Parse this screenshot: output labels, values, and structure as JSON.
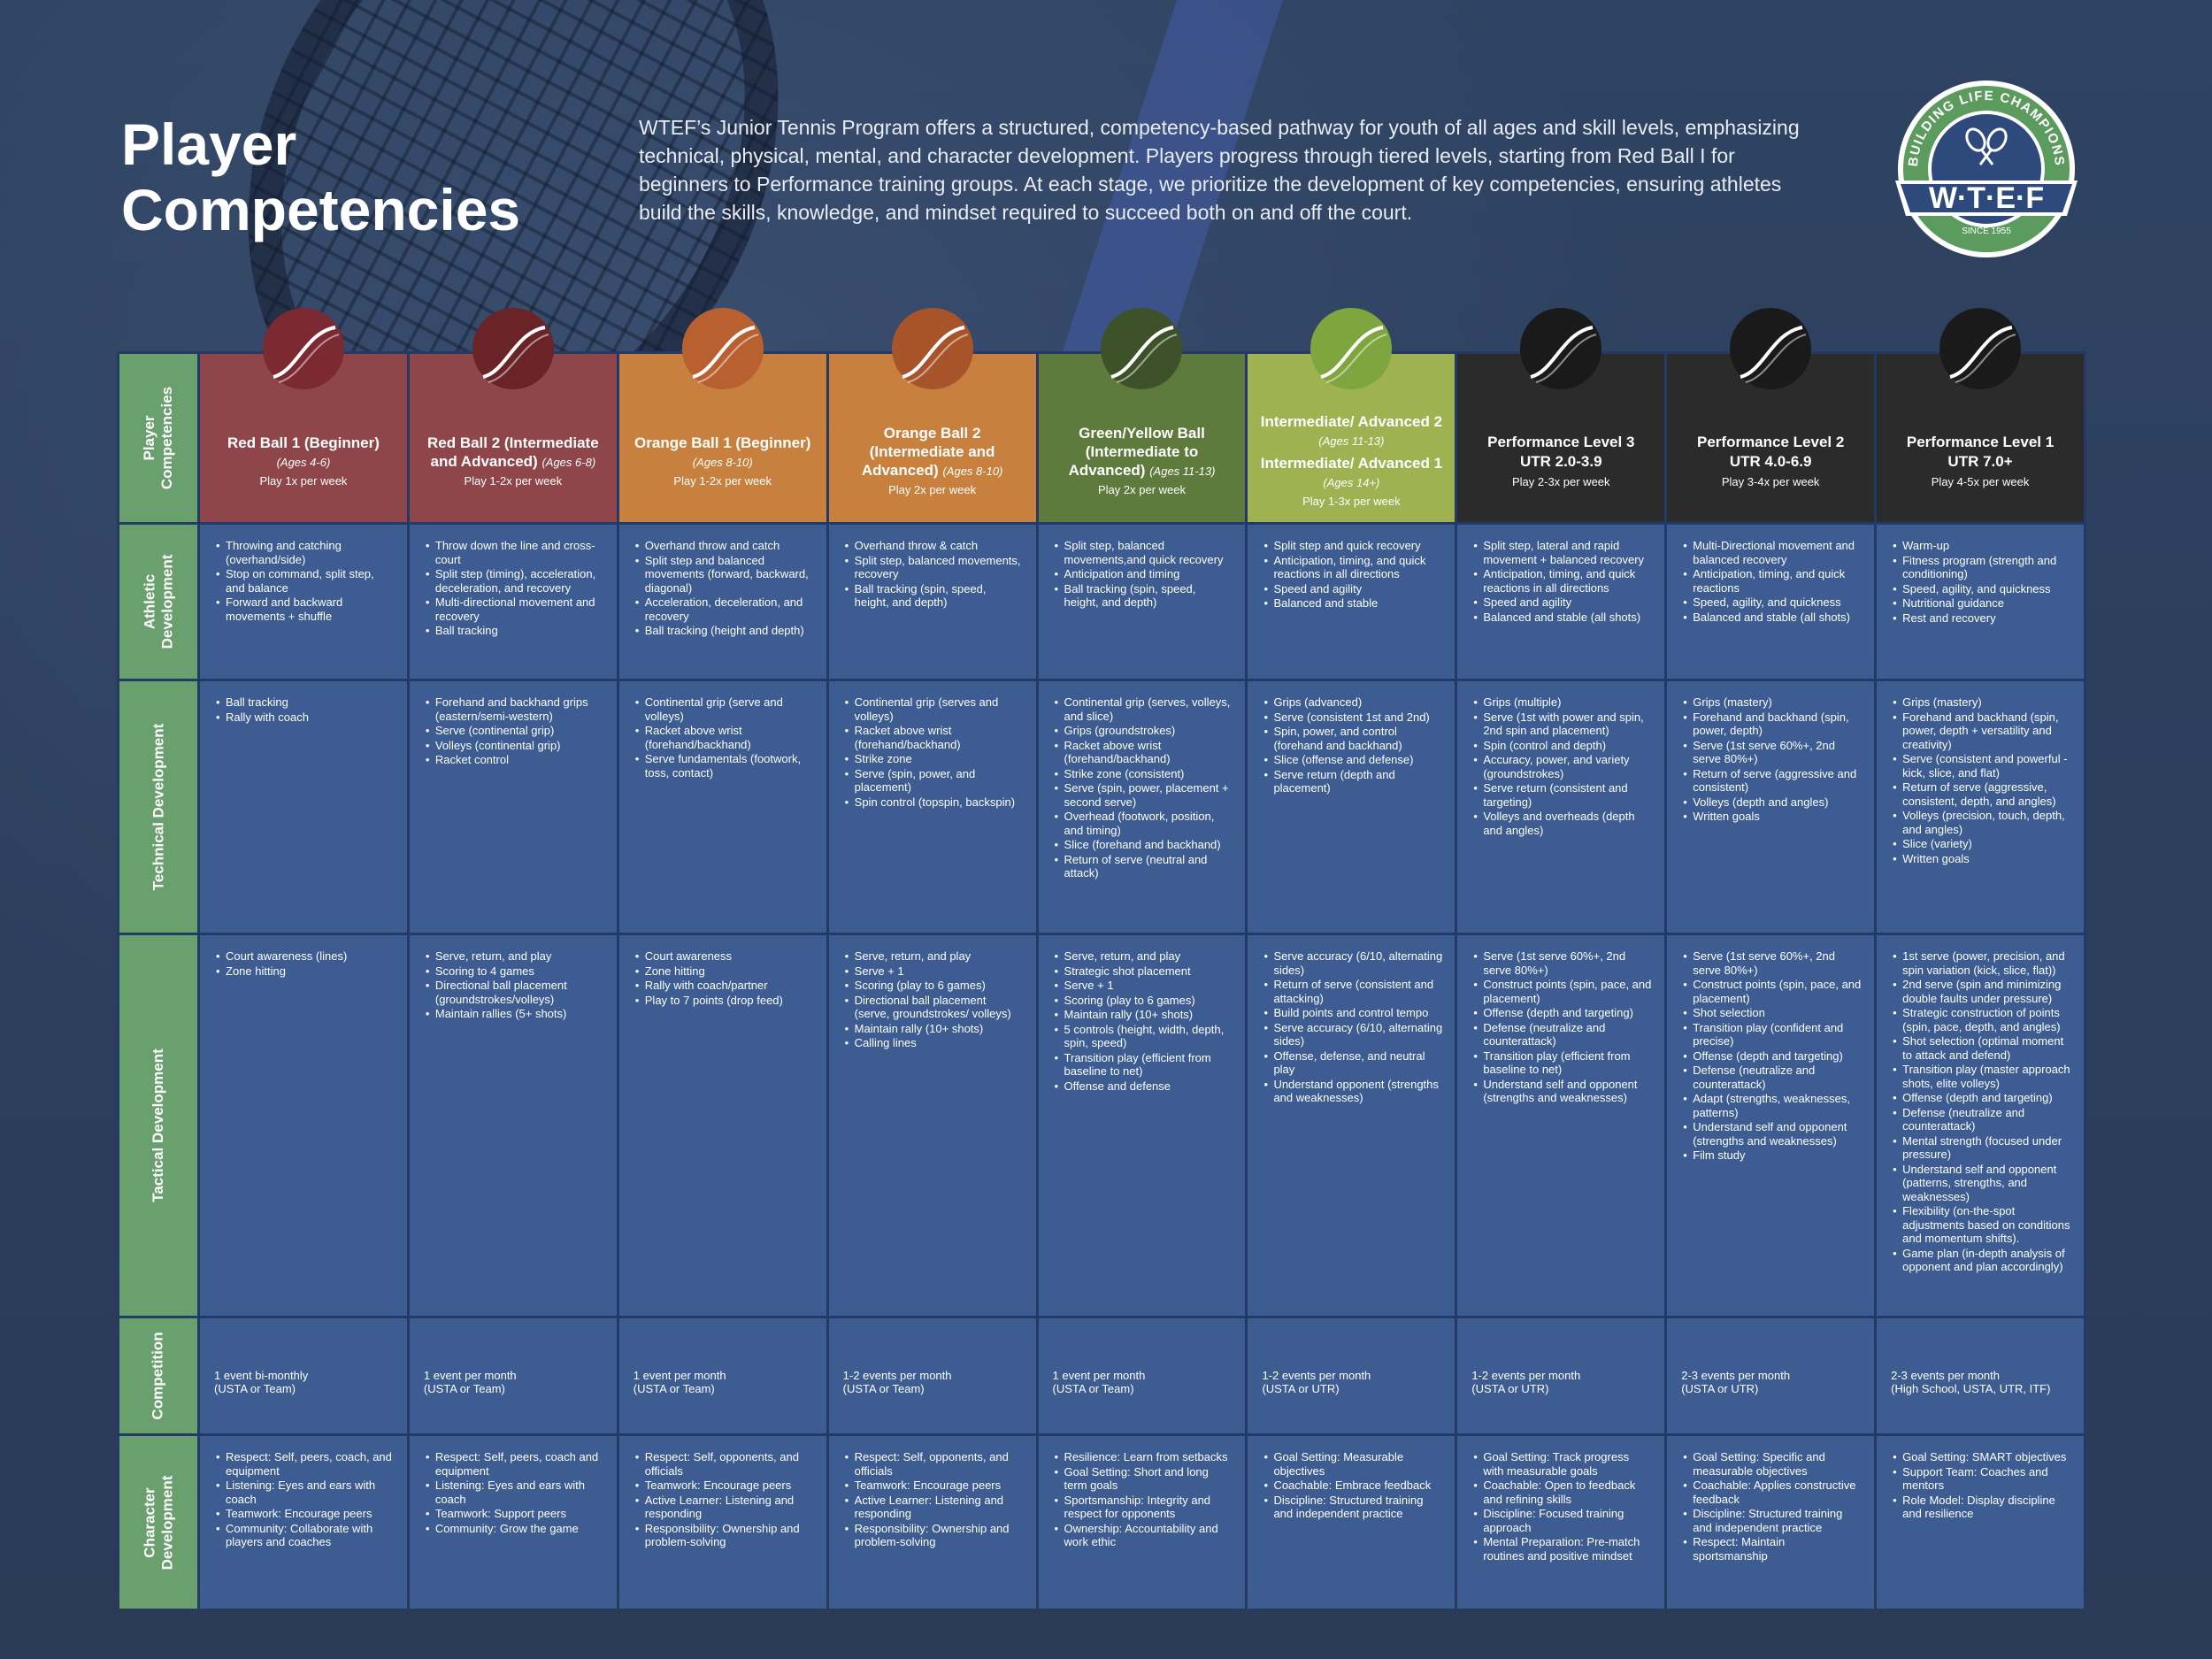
{
  "page": {
    "title_line1": "Player",
    "title_line2": "Competencies",
    "intro": "WTEF’s Junior Tennis Program offers a structured, competency-based pathway for youth of all ages and skill levels, emphasizing technical, physical, mental, and character development. Players progress through tiered levels, starting from Red Ball I for beginners to Performance training groups. At each stage, we prioritize the development of key competencies, ensuring athletes build the skills, knowledge, and mindset required to succeed both on and off the court."
  },
  "logo": {
    "arc_text": "BUILDING LIFE CHAMPIONS",
    "name": "W·T·E·F",
    "since": "SINCE 1955",
    "colors": {
      "ring": "#5b9b5e",
      "inner": "#2e4a7c",
      "banner": "#2e4a7c"
    }
  },
  "row_labels": {
    "competencies": "Player Competencies",
    "athletic": "Athletic Development",
    "technical": "Technical Development",
    "tactical": "Tactical Development",
    "competition": "Competition",
    "character": "Character Development"
  },
  "levels": [
    {
      "name": "Red Ball 1 (Beginner)",
      "age": "(Ages 4-6)",
      "play": "Play 1x per week",
      "ball_color": "#7b2a31",
      "athletic": [
        "Throwing and catching (overhand/side)",
        "Stop on command, split step, and balance",
        "Forward and backward movements + shuffle"
      ],
      "technical": [
        "Ball tracking",
        "Rally with coach"
      ],
      "tactical": [
        "Court awareness (lines)",
        "Zone hitting"
      ],
      "competition": [
        "1 event bi-monthly",
        "(USTA or Team)"
      ],
      "character": [
        "Respect: Self, peers, coach, and equipment",
        "Listening: Eyes and ears with coach",
        "Teamwork: Encourage peers",
        "Community: Collaborate with players and coaches"
      ]
    },
    {
      "name": "Red Ball 2 (Intermediate and Advanced)",
      "age": "(Ages 6-8)",
      "play": "Play 1-2x per week",
      "ball_color": "#6a2428",
      "athletic": [
        "Throw down the line and cross-court",
        "Split step (timing), acceleration, deceleration, and recovery",
        "Multi-directional movement and recovery",
        "Ball tracking"
      ],
      "technical": [
        "Forehand and backhand grips (eastern/semi-western)",
        "Serve (continental grip)",
        "Volleys (continental grip)",
        "Racket control"
      ],
      "tactical": [
        "Serve, return, and play",
        "Scoring to 4 games",
        "Directional ball placement (groundstrokes/volleys)",
        "Maintain rallies (5+ shots)"
      ],
      "competition": [
        "1 event per month",
        "(USTA or Team)"
      ],
      "character": [
        "Respect: Self, peers, coach and equipment",
        "Listening: Eyes and ears with coach",
        "Teamwork: Support peers",
        "Community: Grow the game"
      ]
    },
    {
      "name": "Orange Ball 1 (Beginner)",
      "age": "(Ages 8-10)",
      "play": "Play 1-2x per week",
      "ball_color": "#b8602f",
      "athletic": [
        "Overhand throw and catch",
        "Split step and balanced movements (forward, backward, diagonal)",
        "Acceleration, deceleration, and recovery",
        "Ball tracking (height and depth)"
      ],
      "technical": [
        "Continental grip (serve and volleys)",
        "Racket above wrist (forehand/backhand)",
        "Serve fundamentals (footwork, toss, contact)"
      ],
      "tactical": [
        "Court awareness",
        "Zone hitting",
        "Rally with coach/partner",
        "Play to 7 points (drop feed)"
      ],
      "competition": [
        "1 event per month",
        "(USTA or Team)"
      ],
      "character": [
        "Respect: Self, opponents, and officials",
        "Teamwork: Encourage peers",
        "Active Learner: Listening and responding",
        "Responsibility: Ownership and problem-solving"
      ]
    },
    {
      "name": "Orange Ball 2 (Intermediate and Advanced)",
      "age": "(Ages 8-10)",
      "play": "Play 2x per week",
      "ball_color": "#a8542a",
      "athletic": [
        "Overhand throw & catch",
        "Split step, balanced movements, recovery",
        "Ball tracking (spin, speed, height, and depth)"
      ],
      "technical": [
        "Continental grip (serves and volleys)",
        "Racket above wrist (forehand/backhand)",
        "Strike zone",
        "Serve (spin, power, and placement)",
        "Spin control (topspin, backspin)"
      ],
      "tactical": [
        "Serve, return, and play",
        "Serve + 1",
        "Scoring (play to 6 games)",
        "Directional ball placement (serve, groundstrokes/ volleys)",
        "Maintain rally (10+ shots)",
        "Calling lines"
      ],
      "competition": [
        "1-2 events per month",
        "(USTA or Team)"
      ],
      "character": [
        "Respect: Self, opponents, and officials",
        "Teamwork: Encourage peers",
        "Active Learner: Listening and responding",
        "Responsibility: Ownership and problem-solving"
      ]
    },
    {
      "name": "Green/Yellow Ball (Intermediate to Advanced)",
      "age": "(Ages 11-13)",
      "play": "Play 2x per week",
      "ball_color": "#3e5229",
      "athletic": [
        "Split step, balanced movements,and quick recovery",
        "Anticipation and timing",
        "Ball tracking (spin, speed, height, and depth)"
      ],
      "technical": [
        "Continental grip (serves, volleys, and slice)",
        "Grips (groundstrokes)",
        "Racket above wrist (forehand/backhand)",
        "Strike zone (consistent)",
        "Serve (spin, power, placement + second serve)",
        "Overhead (footwork, position, and timing)",
        "Slice (forehand and backhand)",
        "Return of serve (neutral and attack)"
      ],
      "tactical": [
        "Serve, return, and play",
        "Strategic shot placement",
        "Serve + 1",
        "Scoring (play to 6 games)",
        "Maintain rally (10+ shots)",
        "5 controls (height, width, depth, spin, speed)",
        "Transition play (efficient from baseline to net)",
        "Offense and defense"
      ],
      "competition": [
        "1 event per month",
        "(USTA or Team)"
      ],
      "character": [
        "Resilience: Learn from setbacks",
        "Goal Setting: Short and long term goals",
        "Sportsmanship: Integrity and respect for opponents",
        "Ownership: Accountability and work ethic"
      ]
    },
    {
      "name": "Intermediate/ Advanced 2",
      "age": "(Ages 11-13)",
      "name2": "Intermediate/ Advanced 1",
      "age2": "(Ages 14+)",
      "play": "Play 1-3x per week",
      "ball_color": "#7ea53e",
      "athletic": [
        "Split step and quick recovery",
        "Anticipation, timing, and quick reactions in all directions",
        "Speed and agility",
        "Balanced and stable"
      ],
      "technical": [
        "Grips (advanced)",
        "Serve (consistent 1st and 2nd)",
        "Spin, power, and control (forehand and backhand)",
        "Slice (offense and defense)",
        "Serve return (depth and placement)"
      ],
      "tactical": [
        "Serve accuracy (6/10, alternating sides)",
        "Return of serve (consistent and attacking)",
        "Build points and control tempo",
        "Serve accuracy (6/10, alternating sides)",
        "Offense, defense, and neutral play",
        "Understand opponent (strengths and weaknesses)"
      ],
      "competition": [
        "1-2 events per month",
        "(USTA or UTR)"
      ],
      "character": [
        "Goal Setting: Measurable objectives",
        "Coachable: Embrace feedback",
        "Discipline: Structured training and independent practice"
      ]
    },
    {
      "name": "Performance Level 3",
      "utr": "UTR 2.0-3.9",
      "play": "Play 2-3x per week",
      "ball_color": "#1a1a1a",
      "athletic": [
        "Split step, lateral and rapid movement + balanced recovery",
        "Anticipation, timing, and quick reactions in all directions",
        "Speed and agility",
        "Balanced and stable (all shots)"
      ],
      "technical": [
        "Grips (multiple)",
        "Serve (1st with power and spin, 2nd spin and placement)",
        "Spin (control and depth)",
        "Accuracy, power, and variety (groundstrokes)",
        "Serve return (consistent and targeting)",
        "Volleys and overheads (depth and angles)"
      ],
      "tactical": [
        "Serve (1st serve 60%+, 2nd serve 80%+)",
        "Construct points (spin, pace, and placement)",
        "Offense (depth and targeting)",
        "Defense (neutralize and counterattack)",
        "Transition play (efficient from baseline to net)",
        "Understand self and opponent (strengths and weaknesses)"
      ],
      "competition": [
        "1-2 events per month",
        "(USTA or UTR)"
      ],
      "character": [
        "Goal Setting: Track progress with measurable goals",
        "Coachable: Open to feedback and refining skills",
        "Discipline: Focused training approach",
        "Mental Preparation: Pre-match routines and positive mindset"
      ]
    },
    {
      "name": "Performance Level 2",
      "utr": "UTR 4.0-6.9",
      "play": "Play 3-4x per week",
      "ball_color": "#1a1a1a",
      "athletic": [
        "Multi-Directional movement and balanced recovery",
        "Anticipation, timing, and quick reactions",
        "Speed, agility, and quickness",
        "Balanced and stable (all shots)"
      ],
      "technical": [
        "Grips (mastery)",
        "Forehand and backhand (spin, power, depth)",
        "Serve (1st serve 60%+, 2nd serve 80%+)",
        "Return of serve (aggressive and consistent)",
        "Volleys (depth and angles)",
        "Written goals"
      ],
      "tactical": [
        "Serve (1st serve 60%+, 2nd serve 80%+)",
        "Construct points (spin, pace, and placement)",
        "Shot selection",
        "Transition play (confident and precise)",
        "Offense (depth and targeting)",
        "Defense (neutralize and counterattack)",
        "Adapt (strengths, weaknesses, patterns)",
        "Understand self and opponent (strengths and weaknesses)",
        "Film study"
      ],
      "competition": [
        "2-3 events per month",
        "(USTA or UTR)"
      ],
      "character": [
        "Goal Setting: Specific and measurable objectives",
        "Coachable: Applies constructive feedback",
        "Discipline: Structured training and independent practice",
        "Respect: Maintain sportsmanship"
      ]
    },
    {
      "name": "Performance Level 1",
      "utr": "UTR 7.0+",
      "play": "Play 4-5x per week",
      "ball_color": "#1a1a1a",
      "athletic": [
        "Warm-up",
        "Fitness program (strength and conditioning)",
        "Speed, agility, and quickness",
        "Nutritional guidance",
        "Rest and recovery"
      ],
      "technical": [
        "Grips (mastery)",
        "Forehand and backhand (spin, power, depth + versatility and creativity)",
        "Serve (consistent and powerful - kick, slice, and flat)",
        "Return of serve (aggressive, consistent, depth, and angles)",
        "Volleys (precision, touch, depth, and angles)",
        "Slice (variety)",
        "Written goals"
      ],
      "tactical": [
        "1st serve (power, precision, and spin variation (kick, slice, flat))",
        "2nd serve (spin and minimizing double faults under pressure)",
        "Strategic construction of points (spin, pace, depth, and angles)",
        "Shot selection (optimal moment to attack and defend)",
        "Transition play (master approach shots, elite volleys)",
        "Offense (depth and targeting)",
        "Defense (neutralize and counterattack)",
        "Mental strength (focused under pressure)",
        "Understand self and opponent (patterns, strengths, and weaknesses)",
        "Flexibility (on-the-spot adjustments based on conditions and momentum shifts).",
        "Game plan (in-depth analysis of opponent and plan accordingly)"
      ],
      "competition": [
        "2-3 events per month",
        "(High School, USTA, UTR, ITF)"
      ],
      "character": [
        "Goal Setting: SMART objectives",
        "Support Team: Coaches and mentors",
        "Role Model: Display discipline and resilience"
      ]
    }
  ]
}
